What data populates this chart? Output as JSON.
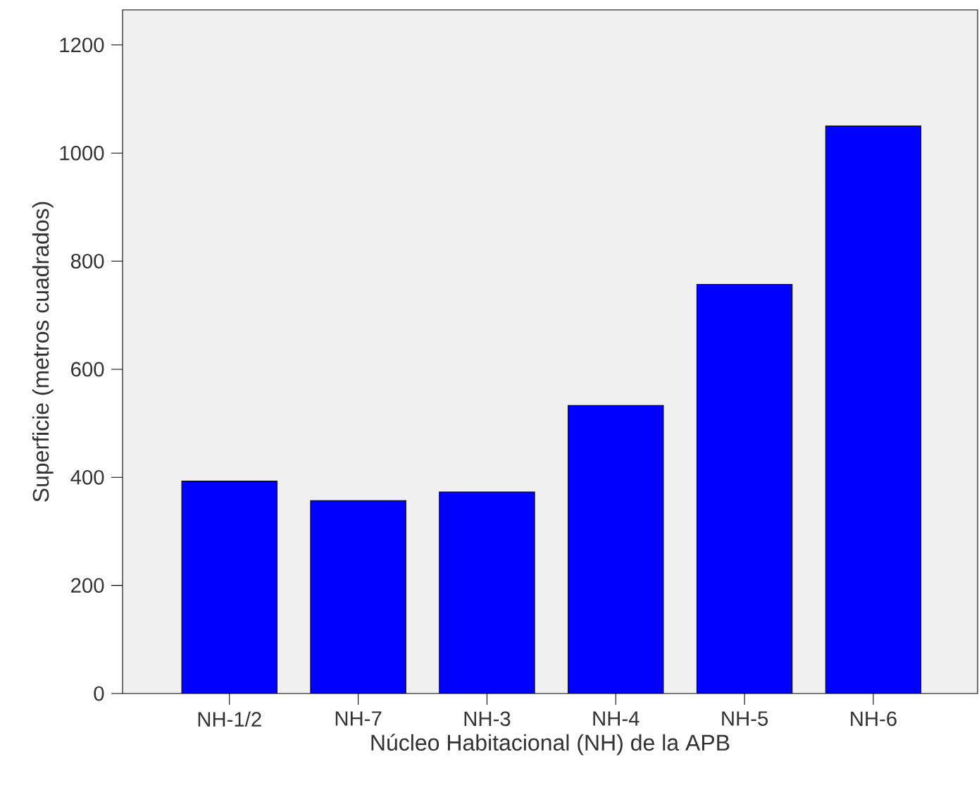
{
  "chart_data": {
    "type": "bar",
    "xlabel": "Núcleo Habitacional (NH) de la APB",
    "ylabel": "Superficie (metros cuadrados)",
    "categories": [
      "NH-1/2",
      "NH-7",
      "NH-3",
      "NH-4",
      "NH-5",
      "NH-6"
    ],
    "values": [
      393,
      357,
      373,
      533,
      757,
      1050
    ],
    "color": "#0000ff",
    "ylim": [
      0,
      1265
    ],
    "yticks": [
      0,
      200,
      400,
      600,
      800,
      1000,
      1200
    ],
    "grid": false,
    "legend": false
  }
}
